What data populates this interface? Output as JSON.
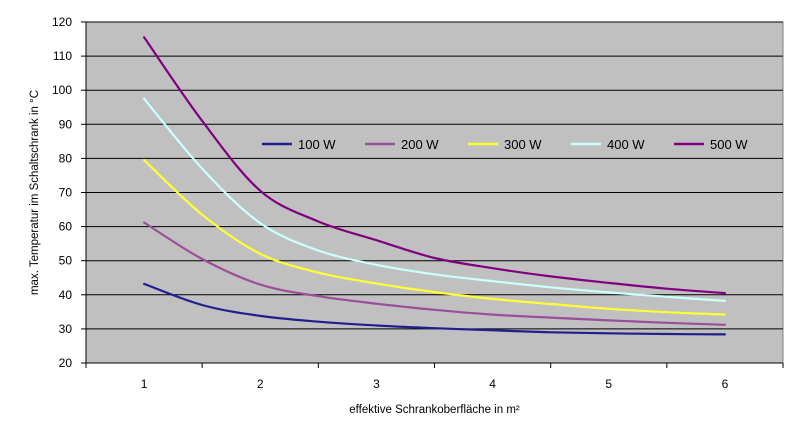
{
  "chart_data": {
    "type": "line",
    "title": "",
    "xlabel": "effektive Schrankoberfläche in m²",
    "ylabel": "max. Temperatur im Schaltschrank in °C",
    "xlim": [
      0.5,
      6.5
    ],
    "ylim": [
      20,
      120
    ],
    "x_ticks": [
      "1",
      "2",
      "3",
      "4",
      "5",
      "6"
    ],
    "y_ticks": [
      "20",
      "30",
      "40",
      "50",
      "60",
      "70",
      "80",
      "90",
      "100",
      "110",
      "120"
    ],
    "grid": "horizontal",
    "legend_position": "upper-center",
    "plot_background": "#c0c0c0",
    "x": [
      1,
      1.5,
      2,
      2.5,
      3,
      3.5,
      4,
      4.5,
      5,
      5.5,
      6
    ],
    "series": [
      {
        "name": "100 W",
        "color": "#1f1f8f",
        "values": [
          43.2,
          37.0,
          33.8,
          32.1,
          31.0,
          30.2,
          29.6,
          29.0,
          28.7,
          28.5,
          28.4
        ]
      },
      {
        "name": "200 W",
        "color": "#9a4f9a",
        "values": [
          61.2,
          50.5,
          43.0,
          39.6,
          37.4,
          35.6,
          34.2,
          33.3,
          32.5,
          31.8,
          31.2
        ]
      },
      {
        "name": "300 W",
        "color": "#ffff33",
        "values": [
          79.5,
          63.5,
          52.0,
          46.5,
          43.3,
          40.8,
          38.8,
          37.3,
          35.9,
          34.9,
          34.2
        ]
      },
      {
        "name": "400 W",
        "color": "#ccffff",
        "values": [
          97.5,
          77.0,
          61.0,
          53.0,
          48.8,
          46.0,
          44.0,
          42.2,
          40.7,
          39.4,
          38.2
        ]
      },
      {
        "name": "500 W",
        "color": "#800080",
        "values": [
          115.5,
          91.0,
          70.5,
          61.5,
          56.0,
          50.8,
          47.8,
          45.4,
          43.5,
          41.8,
          40.5
        ]
      }
    ]
  }
}
